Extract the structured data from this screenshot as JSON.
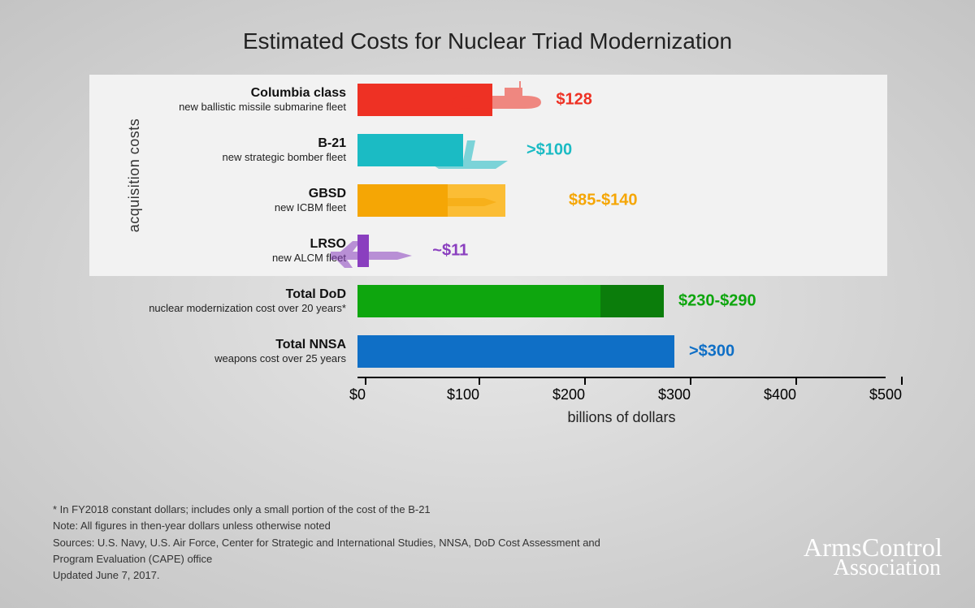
{
  "title": "Estimated Costs for Nuclear Triad Modernization",
  "section_label": "acquisition costs",
  "x_axis": {
    "title": "billions of dollars",
    "min": 0,
    "max": 500,
    "step": 100,
    "tick_labels": [
      "$0",
      "$100",
      "$200",
      "$300",
      "$400",
      "$500"
    ],
    "font_size": 18
  },
  "rows": [
    {
      "title": "Columbia class",
      "subtitle": "new ballistic missile submarine fleet",
      "value_low": 128,
      "value_high": 128,
      "label": "$128",
      "color": "#ee3124",
      "color_ext": "#ee3124",
      "text_color": "#ee3124",
      "icon": "submarine",
      "in_acq": true
    },
    {
      "title": "B-21",
      "subtitle": "new strategic bomber fleet",
      "value_low": 100,
      "value_high": 100,
      "label": ">$100",
      "color": "#1bbbc4",
      "color_ext": "#1bbbc4",
      "text_color": "#1bbbc4",
      "icon": "bomber",
      "in_acq": true
    },
    {
      "title": "GBSD",
      "subtitle": "new ICBM fleet",
      "value_low": 85,
      "value_high": 140,
      "label": "$85-$140",
      "color": "#f5a605",
      "color_ext": "#fbbd35",
      "text_color": "#f5a605",
      "icon": "icbm",
      "in_acq": true
    },
    {
      "title": "LRSO",
      "subtitle": "new ALCM fleet",
      "value_low": 11,
      "value_high": 11,
      "label": "~$11",
      "color": "#8a3fbf",
      "color_ext": "#8a3fbf",
      "text_color": "#8a3fbf",
      "icon": "cruise",
      "in_acq": true
    },
    {
      "title": "Total DoD",
      "subtitle": "nuclear modernization cost over 20 years*",
      "value_low": 230,
      "value_high": 290,
      "label": "$230-$290",
      "color": "#0ea60e",
      "color_ext": "#0b7d0b",
      "text_color": "#0ea60e",
      "icon": null,
      "in_acq": false
    },
    {
      "title": "Total NNSA",
      "subtitle": "weapons cost over 25 years",
      "value_low": 300,
      "value_high": 300,
      "label": ">$300",
      "color": "#0f6fc6",
      "color_ext": "#0f6fc6",
      "text_color": "#0f6fc6",
      "icon": null,
      "in_acq": false
    }
  ],
  "footnotes": [
    "* In FY2018 constant dollars; includes only a small portion of the cost of the B-21",
    "Note: All figures in then-year dollars unless otherwise noted",
    "Sources: U.S. Navy, U.S. Air Force, Center for Strategic and International Studies, NNSA, DoD Cost Assessment and Program Evaluation (CAPE) office",
    "Updated June 7, 2017."
  ],
  "brand": {
    "line1": "ArmsControl",
    "line2": "Association"
  }
}
